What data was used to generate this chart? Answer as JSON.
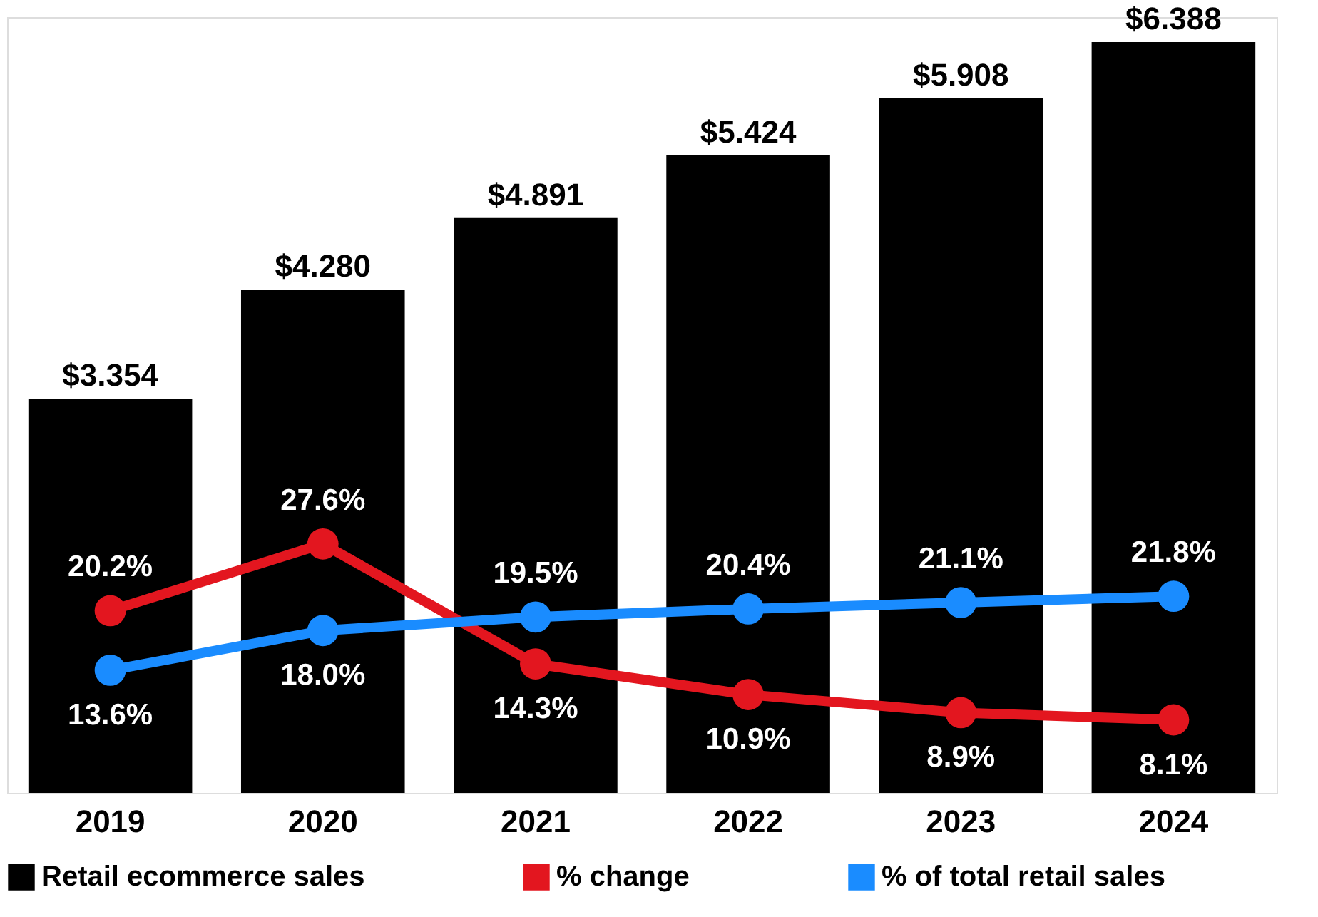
{
  "chart_data": {
    "type": "bar",
    "categories": [
      "2019",
      "2020",
      "2021",
      "2022",
      "2023",
      "2024"
    ],
    "series": [
      {
        "name": "Retail ecommerce sales",
        "color": "#000000",
        "values": [
          3.354,
          4.28,
          4.891,
          5.424,
          5.908,
          6.388
        ],
        "value_labels": [
          "$3.354",
          "$4.280",
          "$4.891",
          "$5.424",
          "$5.908",
          "$6.388"
        ]
      },
      {
        "name": "% change",
        "type": "line",
        "axis": "y2",
        "color": "#e3161f",
        "values": [
          20.2,
          27.6,
          14.3,
          10.9,
          8.9,
          8.1
        ],
        "value_labels": [
          "20.2%",
          "27.6%",
          "14.3%",
          "10.9%",
          "8.9%",
          "8.1%"
        ]
      },
      {
        "name": "% of total retail sales",
        "type": "line",
        "axis": "y2",
        "color": "#1a8cff",
        "values": [
          13.6,
          18.0,
          19.5,
          20.4,
          21.1,
          21.8
        ],
        "value_labels": [
          "13.6%",
          "18.0%",
          "19.5%",
          "20.4%",
          "21.1%",
          "21.8%"
        ]
      }
    ],
    "ylim": [
      0,
      6.6
    ],
    "y2lim": [
      0,
      86
    ],
    "tick_labels": "x",
    "marker": "circle",
    "line_style": "solid",
    "legend": "bottom",
    "grid": false
  }
}
